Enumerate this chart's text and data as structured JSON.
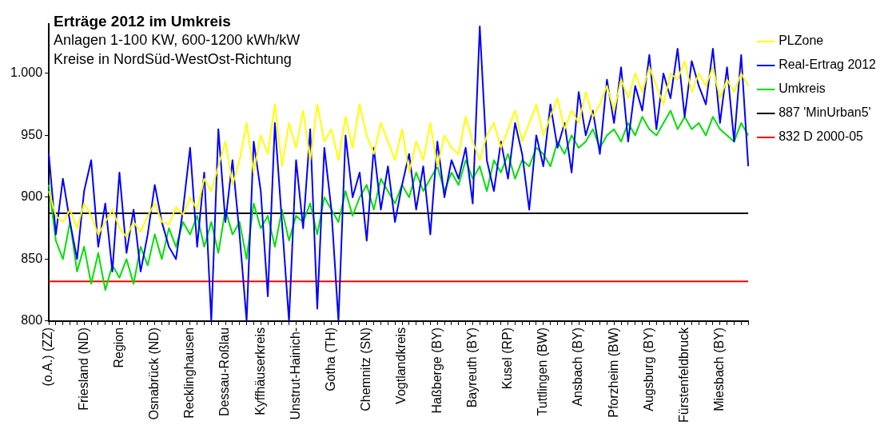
{
  "chart_data": {
    "type": "line",
    "title": "Erträge 2012 im Umkreis",
    "subtitle": "Anlagen 1-100 KW, 600-1200 kWh/kW",
    "annotations": [
      "Kreise in NordSüd-WestOst-Richtung"
    ],
    "categories": [
      "(o.A.) (ZZ)",
      null,
      null,
      null,
      null,
      "Friesland (ND)",
      null,
      null,
      null,
      null,
      "Region",
      null,
      null,
      null,
      null,
      "Osnabrück (ND)",
      null,
      null,
      null,
      null,
      "Recklinghausen",
      null,
      null,
      null,
      null,
      "Dessau-Roßlau",
      null,
      null,
      null,
      null,
      "Kyffhäuserkreis",
      null,
      null,
      null,
      null,
      "Unstrut-Hainich-",
      null,
      null,
      null,
      null,
      "Gotha (TH)",
      null,
      null,
      null,
      null,
      "Chemnitz (SN)",
      null,
      null,
      null,
      null,
      "Vogtlandkreis",
      null,
      null,
      null,
      null,
      "Haßberge (BY)",
      null,
      null,
      null,
      null,
      "Bayreuth (BY)",
      null,
      null,
      null,
      null,
      "Kusel (RP)",
      null,
      null,
      null,
      null,
      "Tuttlingen (BW)",
      null,
      null,
      null,
      null,
      "Ansbach (BY)",
      null,
      null,
      null,
      null,
      "Pforzheim (BW)",
      null,
      null,
      null,
      null,
      "Augsburg (BY)",
      null,
      null,
      null,
      null,
      "Fürstenfeldbruck",
      null,
      null,
      null,
      null,
      "Miesbach (BY)",
      null,
      null,
      null,
      null
    ],
    "series": [
      {
        "name": "PLZone",
        "color": "#ffff00",
        "values": [
          905,
          885,
          880,
          890,
          875,
          895,
          885,
          870,
          880,
          890,
          875,
          868,
          880,
          872,
          885,
          895,
          880,
          878,
          892,
          886,
          900,
          890,
          915,
          905,
          925,
          945,
          910,
          930,
          960,
          920,
          950,
          935,
          975,
          925,
          960,
          940,
          970,
          930,
          975,
          945,
          955,
          930,
          965,
          940,
          975,
          950,
          935,
          960,
          945,
          930,
          955,
          920,
          945,
          930,
          960,
          925,
          950,
          940,
          935,
          965,
          945,
          930,
          950,
          960,
          940,
          955,
          970,
          945,
          960,
          975,
          950,
          965,
          980,
          955,
          970,
          960,
          985,
          965,
          975,
          990,
          970,
          995,
          980,
          1000,
          985,
          1005,
          990,
          975,
          1000,
          995,
          1010,
          985,
          1000,
          990,
          1005,
          980,
          995,
          985,
          1000,
          990
        ]
      },
      {
        "name": "Real-Ertrag 2012",
        "color": "#0000ff",
        "values": [
          935,
          870,
          915,
          880,
          850,
          905,
          930,
          860,
          895,
          840,
          920,
          855,
          890,
          840,
          870,
          910,
          880,
          860,
          850,
          890,
          940,
          860,
          920,
          800,
          955,
          880,
          930,
          870,
          800,
          945,
          905,
          820,
          960,
          880,
          800,
          930,
          875,
          955,
          810,
          940,
          890,
          800,
          950,
          900,
          920,
          865,
          940,
          890,
          925,
          880,
          910,
          935,
          890,
          925,
          870,
          945,
          900,
          930,
          915,
          940,
          895,
          1038,
          930,
          905,
          945,
          915,
          960,
          935,
          890,
          950,
          925,
          975,
          940,
          960,
          920,
          985,
          950,
          970,
          935,
          995,
          960,
          1005,
          945,
          990,
          970,
          1015,
          955,
          1000,
          980,
          1020,
          965,
          1010,
          990,
          975,
          1020,
          960,
          1005,
          945,
          1015,
          925
        ]
      },
      {
        "name": "Umkreis",
        "color": "#00e000",
        "values": [
          910,
          865,
          850,
          880,
          840,
          860,
          830,
          855,
          825,
          845,
          835,
          850,
          830,
          860,
          845,
          870,
          850,
          875,
          860,
          880,
          870,
          885,
          860,
          880,
          855,
          890,
          870,
          880,
          850,
          895,
          875,
          885,
          860,
          890,
          865,
          885,
          880,
          895,
          870,
          900,
          890,
          880,
          905,
          885,
          900,
          910,
          890,
          915,
          905,
          895,
          910,
          900,
          920,
          905,
          915,
          925,
          905,
          920,
          910,
          930,
          915,
          925,
          905,
          930,
          920,
          935,
          915,
          930,
          925,
          940,
          935,
          925,
          945,
          935,
          950,
          940,
          945,
          955,
          940,
          950,
          955,
          945,
          960,
          950,
          965,
          955,
          950,
          960,
          970,
          955,
          965,
          955,
          960,
          950,
          965,
          955,
          950,
          945,
          960,
          950
        ]
      },
      {
        "name": "887 'MinUrban5'",
        "color": "#000000",
        "values": [
          887,
          887,
          887,
          887,
          887,
          887,
          887,
          887,
          887,
          887,
          887,
          887,
          887,
          887,
          887,
          887,
          887,
          887,
          887,
          887,
          887,
          887,
          887,
          887,
          887,
          887,
          887,
          887,
          887,
          887,
          887,
          887,
          887,
          887,
          887,
          887,
          887,
          887,
          887,
          887,
          887,
          887,
          887,
          887,
          887,
          887,
          887,
          887,
          887,
          887,
          887,
          887,
          887,
          887,
          887,
          887,
          887,
          887,
          887,
          887,
          887,
          887,
          887,
          887,
          887,
          887,
          887,
          887,
          887,
          887,
          887,
          887,
          887,
          887,
          887,
          887,
          887,
          887,
          887,
          887,
          887,
          887,
          887,
          887,
          887,
          887,
          887,
          887,
          887,
          887,
          887,
          887,
          887,
          887,
          887,
          887,
          887,
          887,
          887,
          887
        ]
      },
      {
        "name": "832 D 2000-05",
        "color": "#ff0000",
        "values": [
          832,
          832,
          832,
          832,
          832,
          832,
          832,
          832,
          832,
          832,
          832,
          832,
          832,
          832,
          832,
          832,
          832,
          832,
          832,
          832,
          832,
          832,
          832,
          832,
          832,
          832,
          832,
          832,
          832,
          832,
          832,
          832,
          832,
          832,
          832,
          832,
          832,
          832,
          832,
          832,
          832,
          832,
          832,
          832,
          832,
          832,
          832,
          832,
          832,
          832,
          832,
          832,
          832,
          832,
          832,
          832,
          832,
          832,
          832,
          832,
          832,
          832,
          832,
          832,
          832,
          832,
          832,
          832,
          832,
          832,
          832,
          832,
          832,
          832,
          832,
          832,
          832,
          832,
          832,
          832,
          832,
          832,
          832,
          832,
          832,
          832,
          832,
          832,
          832,
          832,
          832,
          832,
          832,
          832,
          832,
          832,
          832,
          832,
          832,
          832
        ]
      }
    ],
    "ylim": [
      800,
      1040
    ],
    "yticks": [
      800,
      850,
      900,
      950,
      {
        "value": 1000,
        "label": "1.000"
      }
    ],
    "legend": "right",
    "marker": "none",
    "line_style": "solid"
  }
}
